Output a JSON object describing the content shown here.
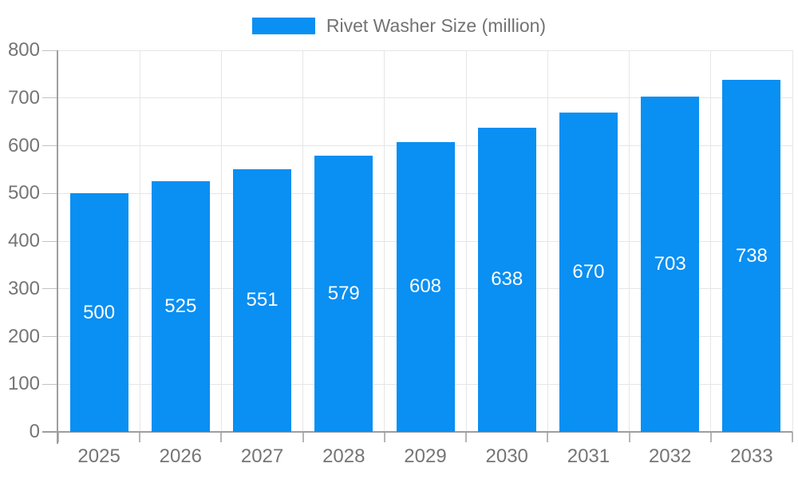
{
  "chart_data": {
    "type": "bar",
    "title": "Rivet Washer Size (million)",
    "categories": [
      "2025",
      "2026",
      "2027",
      "2028",
      "2029",
      "2030",
      "2031",
      "2032",
      "2033"
    ],
    "series": [
      {
        "name": "Rivet Washer Size (million)",
        "values": [
          500,
          525,
          551,
          579,
          608,
          638,
          670,
          703,
          738
        ]
      }
    ],
    "value_labels_shown": true,
    "xlabel": "",
    "ylabel": "",
    "ylim": [
      0,
      800
    ],
    "yticks": [
      0,
      100,
      200,
      300,
      400,
      500,
      600,
      700,
      800
    ],
    "grid": true,
    "legend_position": "top",
    "colors": {
      "bar": "#0a8ff2",
      "value_label": "#ffffff",
      "axis_text": "#757575",
      "legend_text": "#737373",
      "gridline": "#e6e6e6",
      "axis_line": "#9e9e9e"
    }
  }
}
